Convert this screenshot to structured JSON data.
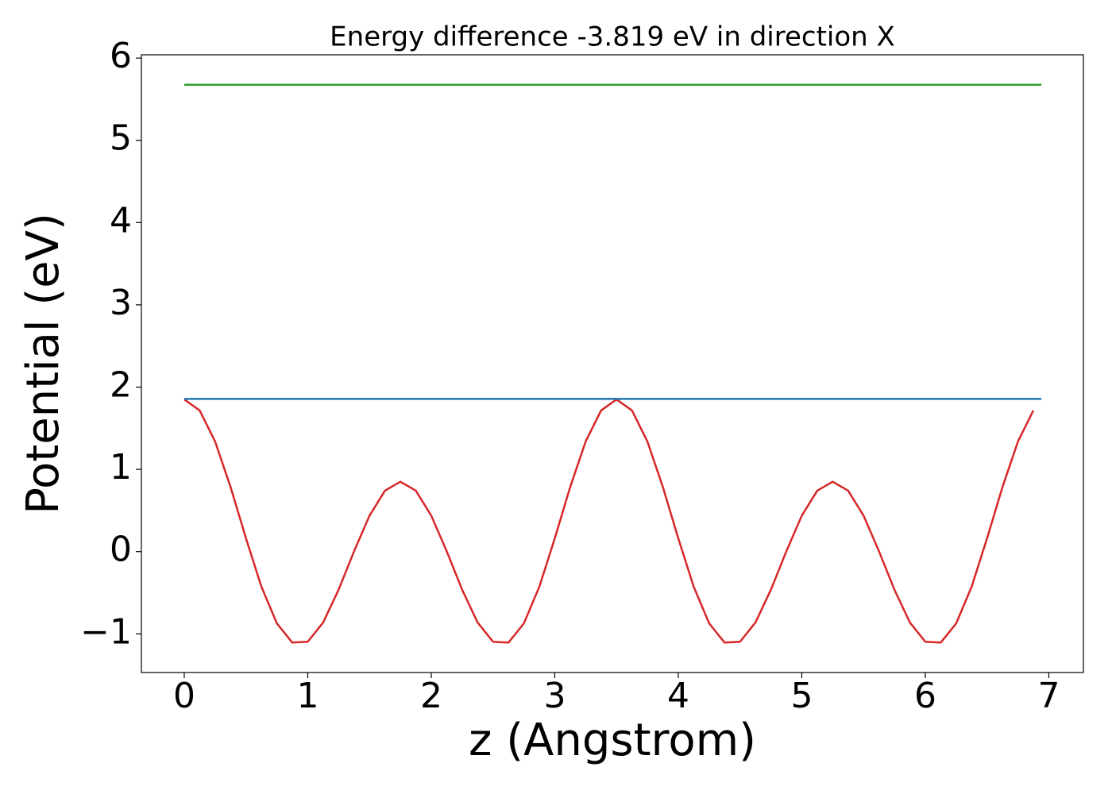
{
  "chart_data": {
    "type": "line",
    "title": "Energy difference -3.819 eV in direction X",
    "xlabel": "z (Angstrom)",
    "ylabel": "Potential (eV)",
    "xlim": [
      -0.347,
      7.28
    ],
    "ylim": [
      -1.47,
      6.04
    ],
    "xticks": [
      0,
      1,
      2,
      3,
      4,
      5,
      6,
      7
    ],
    "yticks": [
      {
        "value": -1,
        "label": "−1"
      },
      0,
      1,
      2,
      3,
      4,
      5,
      6
    ],
    "series": [
      {
        "color": "#d62728",
        "x": [
          0,
          0.125,
          0.25,
          0.375,
          0.5,
          0.625,
          0.75,
          0.875,
          1,
          1.125,
          1.25,
          1.375,
          1.5,
          1.625,
          1.75,
          1.875,
          2,
          2.125,
          2.25,
          2.375,
          2.5,
          2.625,
          2.75,
          2.875,
          3,
          3.125,
          3.25,
          3.375,
          3.5,
          3.625,
          3.75,
          3.875,
          4,
          4.125,
          4.25,
          4.375,
          4.5,
          4.625,
          4.75,
          4.875,
          5,
          5.125,
          5.25,
          5.375,
          5.5,
          5.625,
          5.75,
          5.875,
          6,
          6.125,
          6.25,
          6.375,
          6.5,
          6.625,
          6.75,
          6.875
        ],
        "values": [
          1.85,
          1.716,
          1.338,
          0.786,
          0.161,
          -0.427,
          -0.873,
          -1.106,
          -1.096,
          -0.861,
          -0.463,
          0.004,
          0.437,
          0.741,
          0.85,
          0.741,
          0.437,
          0.004,
          -0.463,
          -0.861,
          -1.096,
          -1.106,
          -0.873,
          -0.427,
          0.161,
          0.786,
          1.338,
          1.716,
          1.85,
          1.716,
          1.338,
          0.786,
          0.161,
          -0.427,
          -0.873,
          -1.106,
          -1.096,
          -0.861,
          -0.463,
          0.004,
          0.437,
          0.741,
          0.85,
          0.741,
          0.437,
          0.004,
          -0.463,
          -0.861,
          -1.096,
          -1.106,
          -0.873,
          -0.427,
          0.161,
          0.786,
          1.338,
          1.716
        ]
      },
      {
        "color": "#1f77b4",
        "x": [
          0,
          6.94
        ],
        "values": [
          1.857,
          1.857
        ]
      },
      {
        "color": "#2ca02c",
        "x": [
          0,
          6.94
        ],
        "values": [
          5.676,
          5.676
        ]
      }
    ]
  }
}
